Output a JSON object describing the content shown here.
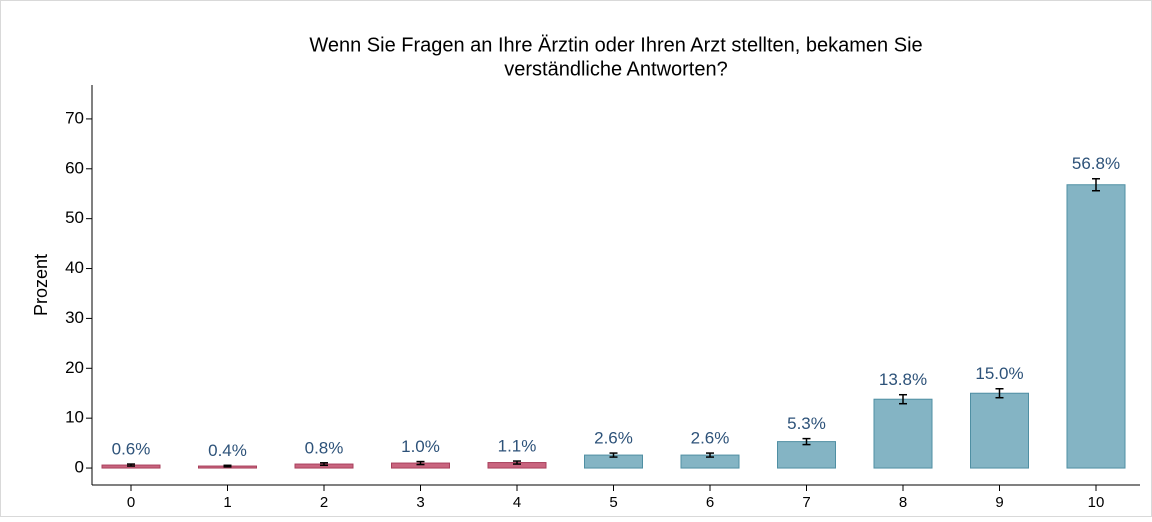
{
  "chart_data": {
    "type": "bar",
    "title": [
      "Wenn Sie Fragen an Ihre Ärztin oder Ihren Arzt stellten, bekamen Sie",
      "verständliche Antworten?"
    ],
    "y_label": "Prozent",
    "categories": [
      "0",
      "1",
      "2",
      "3",
      "4",
      "5",
      "6",
      "7",
      "8",
      "9",
      "10"
    ],
    "values": [
      0.6,
      0.4,
      0.8,
      1.0,
      1.1,
      2.6,
      2.6,
      5.3,
      13.8,
      15.0,
      56.8
    ],
    "value_labels": [
      "0.6%",
      "0.4%",
      "0.8%",
      "1.0%",
      "1.1%",
      "2.6%",
      "2.6%",
      "5.3%",
      "13.8%",
      "15.0%",
      "56.8%"
    ],
    "errors": [
      0.2,
      0.15,
      0.25,
      0.3,
      0.3,
      0.4,
      0.4,
      0.6,
      0.9,
      0.9,
      1.2
    ],
    "colors": [
      "#c9657f",
      "#c9657f",
      "#c9657f",
      "#c9657f",
      "#c9657f",
      "#84b4c4",
      "#84b4c4",
      "#84b4c4",
      "#84b4c4",
      "#84b4c4",
      "#84b4c4"
    ],
    "ylim": [
      -3.4,
      76.8
    ],
    "yticks": [
      0,
      10,
      20,
      30,
      40,
      50,
      60,
      70
    ]
  }
}
